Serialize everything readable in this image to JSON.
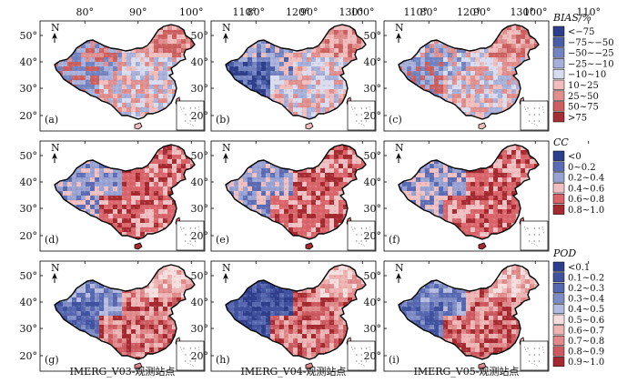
{
  "columns": [
    "IMERG_V03-观测站点",
    "IMERG_V04-观测站点",
    "IMERG_V05-观测站点"
  ],
  "lon_ticks": [
    "80°",
    "90°",
    "100°",
    "110°",
    "120°",
    "130°"
  ],
  "lat_ticks": [
    "50°",
    "40°",
    "30°",
    "20°"
  ],
  "north_label": "N",
  "rows": [
    {
      "metric": "BIAS/%",
      "panels": [
        "(a)",
        "(b)",
        "(c)"
      ],
      "legend": [
        {
          "label": "<−75",
          "color": "#2c3e8c"
        },
        {
          "label": "−75~−50",
          "color": "#4a5ea8"
        },
        {
          "label": "−50~−25",
          "color": "#7384c2"
        },
        {
          "label": "−25~−10",
          "color": "#a6b0da"
        },
        {
          "label": "−10~10",
          "color": "#d9dcee"
        },
        {
          "label": "10~25",
          "color": "#f0bcbc"
        },
        {
          "label": "25~50",
          "color": "#e08e8e"
        },
        {
          "label": "50~75",
          "color": "#cc5f5f"
        },
        {
          "label": ">75",
          "color": "#a52e35"
        }
      ]
    },
    {
      "metric": "CC",
      "panels": [
        "(d)",
        "(e)",
        "(f)"
      ],
      "legend": [
        {
          "label": "<0",
          "color": "#2c3e8c"
        },
        {
          "label": "0~0.2",
          "color": "#5b6cb5"
        },
        {
          "label": "0.2~0.4",
          "color": "#98a3d4"
        },
        {
          "label": "0.4~0.6",
          "color": "#efbfc2"
        },
        {
          "label": "0.6~0.8",
          "color": "#d9646a"
        },
        {
          "label": "0.8~1.0",
          "color": "#a52a30"
        }
      ]
    },
    {
      "metric": "POD",
      "panels": [
        "(g)",
        "(h)",
        "(i)"
      ],
      "legend": [
        {
          "label": "<0.1",
          "color": "#2c3e8c"
        },
        {
          "label": "0.1~0.2",
          "color": "#3f52a0"
        },
        {
          "label": "0.2~0.3",
          "color": "#5668b1"
        },
        {
          "label": "0.3~0.4",
          "color": "#7d8cc6"
        },
        {
          "label": "0.4~0.5",
          "color": "#b3bce0"
        },
        {
          "label": "0.5~0.6",
          "color": "#f7dede"
        },
        {
          "label": "0.6~0.7",
          "color": "#eeb4b4"
        },
        {
          "label": "0.7~0.8",
          "color": "#e08a8c"
        },
        {
          "label": "0.8~0.9",
          "color": "#cc5a60"
        },
        {
          "label": "0.9~1.0",
          "color": "#a52a30"
        }
      ]
    }
  ],
  "colors": {
    "west_blue_bias": [
      "#4a5ea8",
      "#7384c2",
      "#a6b0da"
    ],
    "east_red": [
      "#e08e8e",
      "#cc5f5f",
      "#f0bcbc"
    ],
    "outline": "#000000"
  }
}
